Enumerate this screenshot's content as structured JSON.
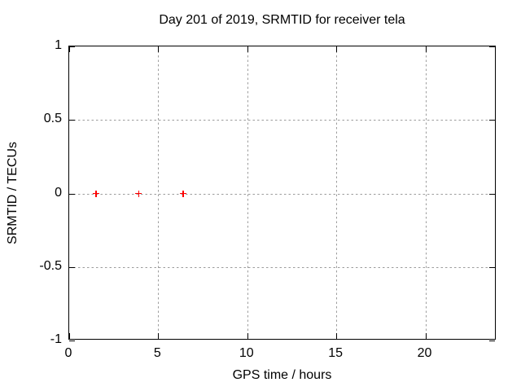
{
  "figure": {
    "background": "#ffffff"
  },
  "chart_data": {
    "type": "scatter",
    "title": "Day 201 of 2019, SRMTID for receiver tela",
    "xlabel": "GPS time / hours",
    "ylabel": "SRMTID / TECUs",
    "xlim": [
      0,
      24
    ],
    "ylim": [
      -1,
      1
    ],
    "xticks": [
      0,
      5,
      10,
      15,
      20
    ],
    "yticks": [
      1,
      0.5,
      0,
      -0.5,
      -1
    ],
    "xtick_labels": [
      "0",
      "5",
      "10",
      "15",
      "20"
    ],
    "ytick_labels": [
      "1",
      "0.5",
      "0",
      "-0.5",
      "-1"
    ],
    "grid": true,
    "grid_style": "dotted",
    "legend": "none",
    "series": [
      {
        "name": "SRMTID",
        "marker": "plus",
        "color": "#ff0000",
        "points": [
          [
            1.5,
            0
          ],
          [
            3.9,
            0
          ],
          [
            6.4,
            0
          ]
        ]
      }
    ],
    "colors": {
      "axis": "#000000",
      "grid": "#9c9c9c",
      "marker": "#ff0000",
      "background": "#ffffff"
    }
  }
}
